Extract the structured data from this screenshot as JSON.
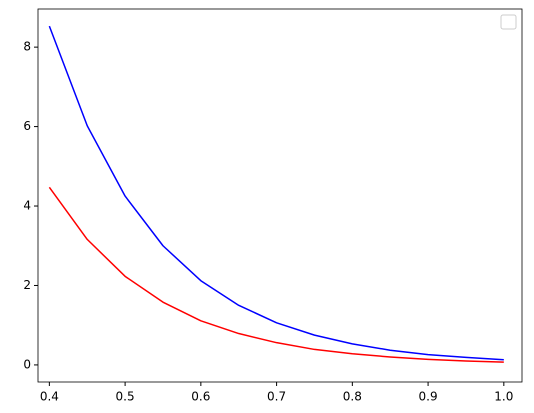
{
  "chart_data": {
    "type": "line",
    "x": [
      0.4,
      0.45,
      0.5,
      0.55,
      0.6,
      0.65,
      0.7,
      0.75,
      0.8,
      0.85,
      0.9,
      0.95,
      1.0
    ],
    "series": [
      {
        "color": "#0000ff",
        "values": [
          8.53,
          6.02,
          4.25,
          3.0,
          2.12,
          1.5,
          1.06,
          0.75,
          0.53,
          0.37,
          0.26,
          0.19,
          0.13
        ]
      },
      {
        "color": "#ff0000",
        "values": [
          4.47,
          3.16,
          2.23,
          1.58,
          1.11,
          0.79,
          0.56,
          0.39,
          0.28,
          0.2,
          0.14,
          0.1,
          0.07
        ]
      }
    ],
    "xlim": [
      0.385,
      1.024
    ],
    "xticks": [
      0.4,
      0.5,
      0.6,
      0.7,
      0.8,
      0.9,
      {
        "value": 1.0,
        "label": "1.0"
      }
    ],
    "ylim": [
      -0.43,
      8.96
    ],
    "yticks": [
      0,
      2,
      4,
      6,
      8
    ],
    "legend": "upper right"
  }
}
